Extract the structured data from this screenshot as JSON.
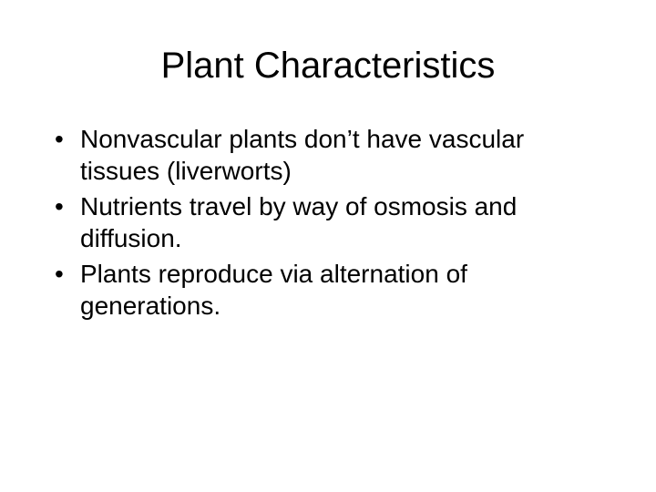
{
  "slide": {
    "title": "Plant Characteristics",
    "bullets": [
      "Nonvascular plants don’t have vascular tissues (liverworts)",
      "Nutrients travel by way of osmosis and diffusion.",
      "Plants reproduce via alternation of generations."
    ]
  },
  "style": {
    "background_color": "#ffffff",
    "text_color": "#000000",
    "title_fontsize": 40,
    "body_fontsize": 28,
    "font_family": "Arial"
  }
}
